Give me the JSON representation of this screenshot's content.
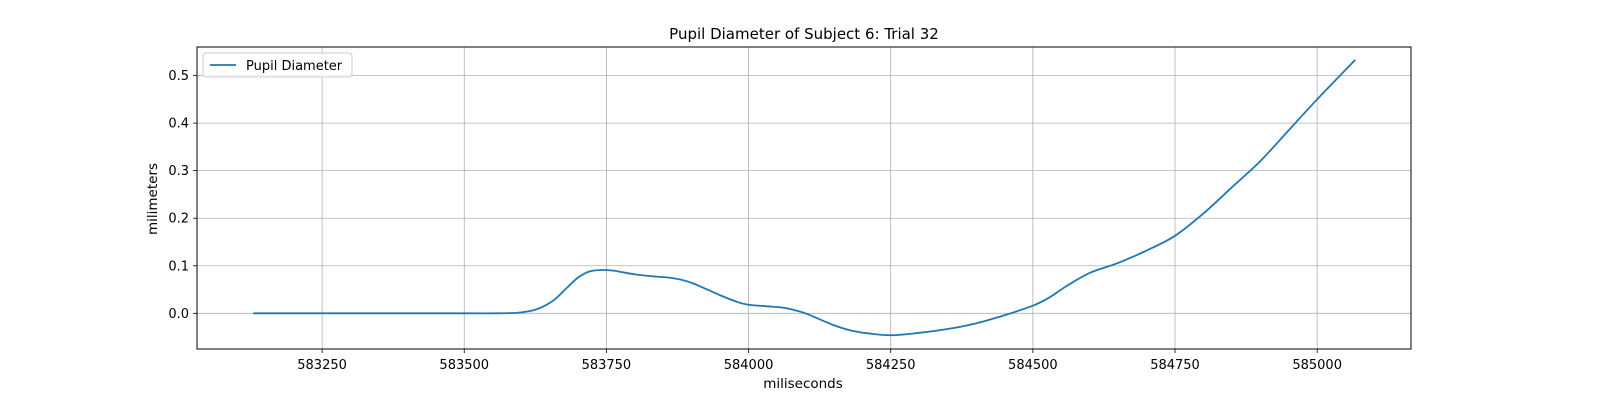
{
  "chart_data": {
    "type": "line",
    "title": "Pupil Diameter of Subject 6: Trial 32",
    "xlabel": "miliseconds",
    "ylabel": "milimeters",
    "xlim": [
      583030,
      585165
    ],
    "ylim": [
      -0.075,
      0.56
    ],
    "xticks": [
      583250,
      583500,
      583750,
      584000,
      584250,
      584500,
      584750,
      585000
    ],
    "yticks": [
      0.0,
      0.1,
      0.2,
      0.3,
      0.4,
      0.5
    ],
    "xtick_labels": [
      "583250",
      "583500",
      "583750",
      "584000",
      "584250",
      "584500",
      "584750",
      "585000"
    ],
    "ytick_labels": [
      "0.0",
      "0.1",
      "0.2",
      "0.3",
      "0.4",
      "0.5"
    ],
    "grid": true,
    "legend_position": "top-left",
    "series": [
      {
        "name": "Pupil Diameter",
        "color": "#1f77b4",
        "x": [
          583130,
          583200,
          583300,
          583400,
          583500,
          583550,
          583590,
          583620,
          583640,
          583660,
          583680,
          583700,
          583720,
          583740,
          583760,
          583780,
          583800,
          583830,
          583860,
          583880,
          583900,
          583920,
          583950,
          583980,
          584000,
          584030,
          584060,
          584080,
          584100,
          584120,
          584150,
          584180,
          584210,
          584250,
          584300,
          584350,
          584400,
          584450,
          584500,
          584530,
          584560,
          584600,
          584650,
          584700,
          584750,
          584800,
          584850,
          584900,
          584950,
          585000,
          585066
        ],
        "y": [
          0.0,
          0.0,
          0.0,
          0.0,
          0.0,
          0.0,
          0.001,
          0.006,
          0.015,
          0.03,
          0.053,
          0.075,
          0.088,
          0.091,
          0.09,
          0.086,
          0.082,
          0.078,
          0.075,
          0.071,
          0.064,
          0.054,
          0.038,
          0.024,
          0.018,
          0.015,
          0.012,
          0.007,
          0.0,
          -0.01,
          -0.025,
          -0.036,
          -0.042,
          -0.046,
          -0.041,
          -0.033,
          -0.021,
          -0.004,
          0.016,
          0.034,
          0.058,
          0.085,
          0.106,
          0.132,
          0.163,
          0.21,
          0.265,
          0.32,
          0.385,
          0.45,
          0.532
        ]
      }
    ]
  }
}
